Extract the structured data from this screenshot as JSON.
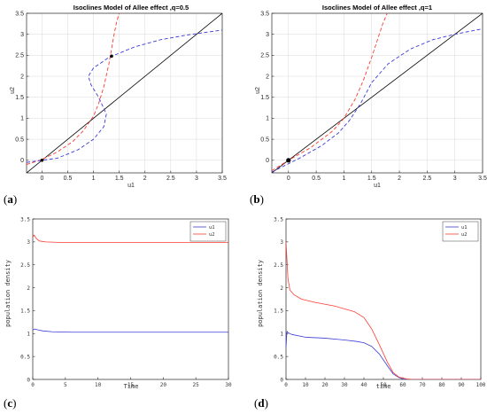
{
  "chart_data": [
    {
      "id": "a",
      "type": "line",
      "caption": "a",
      "title": "Isoclines Model of Allee effect  ,q=0.5",
      "xlabel": "u1",
      "ylabel": "u2",
      "xlim": [
        -0.3,
        3.5
      ],
      "ylim": [
        -0.3,
        3.5
      ],
      "xticks": [
        0,
        0.5,
        1,
        1.5,
        2,
        2.5,
        3,
        3.5
      ],
      "xtick_labels": [
        "0",
        "0.5",
        "1",
        "1.5",
        "2",
        "2.5",
        "3",
        "3.5"
      ],
      "yticks": [
        0,
        0.5,
        1,
        1.5,
        2,
        2.5,
        3,
        3.5
      ],
      "ytick_labels": [
        "0",
        "0.5",
        "1",
        "1.5",
        "2",
        "2.5",
        "3",
        "3.5"
      ],
      "grid": true,
      "series": [
        {
          "color": "#000000",
          "dash": "solid",
          "x": [
            -0.3,
            3.5
          ],
          "y": [
            -0.3,
            3.5
          ]
        },
        {
          "color": "#ff3b30",
          "dash": "dashed",
          "x": [
            -0.3,
            0,
            0.3,
            0.6,
            0.8,
            1.0,
            1.1,
            1.2,
            1.3,
            1.35,
            1.4,
            1.45,
            1.5
          ],
          "y": [
            -0.1,
            0.02,
            0.2,
            0.45,
            0.7,
            1.05,
            1.35,
            1.75,
            2.3,
            2.65,
            3.0,
            3.3,
            3.5
          ]
        },
        {
          "color": "#3b3bd6",
          "dash": "dashed",
          "x": [
            -0.3,
            0.3,
            0.7,
            1.0,
            1.2,
            1.25,
            1.1,
            0.95,
            0.9,
            1.0,
            1.3,
            1.8,
            2.3,
            2.8,
            3.2,
            3.5
          ],
          "y": [
            -0.05,
            0.05,
            0.25,
            0.5,
            0.8,
            1.1,
            1.5,
            1.8,
            2.0,
            2.2,
            2.45,
            2.7,
            2.87,
            2.98,
            3.05,
            3.1
          ]
        }
      ],
      "points": [
        {
          "x": 0,
          "y": 0
        },
        {
          "x": 1.35,
          "y": 2.48
        }
      ]
    },
    {
      "id": "b",
      "type": "line",
      "caption": "b",
      "title": "Isoclines Model of Allee effect  ,q=1",
      "xlabel": "u1",
      "ylabel": "u2",
      "xlim": [
        -0.3,
        3.5
      ],
      "ylim": [
        -0.3,
        3.5
      ],
      "xticks": [
        0,
        0.5,
        1,
        1.5,
        2,
        2.5,
        3,
        3.5
      ],
      "xtick_labels": [
        "0",
        "0.5",
        "1",
        "1.5",
        "2",
        "2.5",
        "3",
        "3.5"
      ],
      "yticks": [
        0,
        0.5,
        1,
        1.5,
        2,
        2.5,
        3,
        3.5
      ],
      "ytick_labels": [
        "0",
        "0.5",
        "1",
        "1.5",
        "2",
        "2.5",
        "3",
        "3.5"
      ],
      "grid": true,
      "series": [
        {
          "color": "#000000",
          "dash": "solid",
          "x": [
            -0.3,
            3.5
          ],
          "y": [
            -0.3,
            3.5
          ]
        },
        {
          "color": "#ff3b30",
          "dash": "dashed",
          "x": [
            -0.3,
            0,
            0.4,
            0.8,
            1.0,
            1.2,
            1.35,
            1.5,
            1.6,
            1.7,
            1.78
          ],
          "y": [
            -0.25,
            0,
            0.3,
            0.7,
            1.0,
            1.45,
            1.9,
            2.45,
            2.85,
            3.25,
            3.5
          ]
        },
        {
          "color": "#3b3bd6",
          "dash": "dashed",
          "x": [
            -0.3,
            0.2,
            0.6,
            0.9,
            1.1,
            1.3,
            1.5,
            1.8,
            2.2,
            2.6,
            3.0,
            3.3,
            3.5
          ],
          "y": [
            -0.28,
            0.05,
            0.35,
            0.65,
            0.95,
            1.35,
            1.85,
            2.3,
            2.65,
            2.87,
            3.0,
            3.08,
            3.13
          ]
        }
      ],
      "points": [
        {
          "x": 0,
          "y": 0
        }
      ]
    },
    {
      "id": "c",
      "type": "line",
      "caption": "c",
      "xlabel": "Time",
      "ylabel": "population density",
      "xlim": [
        0,
        30
      ],
      "ylim": [
        0,
        3.5
      ],
      "xticks": [
        0,
        5,
        10,
        15,
        20,
        25,
        30
      ],
      "xtick_labels": [
        "0",
        "5",
        "10",
        "15",
        "20",
        "25",
        "30"
      ],
      "yticks": [
        0,
        0.5,
        1,
        1.5,
        2,
        2.5,
        3,
        3.5
      ],
      "ytick_labels": [
        "0",
        "0.5",
        "1",
        "1.5",
        "2",
        "2.5",
        "3",
        "3.5"
      ],
      "grid": false,
      "legend": "top-right",
      "series": [
        {
          "name": "u1",
          "color": "#3b3bd6",
          "dash": "solid",
          "x": [
            0,
            0.3,
            0.8,
            1.5,
            3,
            6,
            10,
            15,
            20,
            25,
            30
          ],
          "y": [
            1.08,
            1.1,
            1.08,
            1.06,
            1.04,
            1.03,
            1.03,
            1.03,
            1.03,
            1.03,
            1.03
          ]
        },
        {
          "name": "u2",
          "color": "#ff3b30",
          "dash": "solid",
          "x": [
            0,
            0.2,
            0.5,
            1,
            2,
            4,
            8,
            15,
            20,
            25,
            30
          ],
          "y": [
            3.1,
            3.15,
            3.08,
            3.02,
            3.0,
            2.99,
            2.99,
            2.99,
            2.99,
            2.99,
            2.99
          ]
        }
      ]
    },
    {
      "id": "d",
      "type": "line",
      "caption": "d",
      "xlabel": "time",
      "ylabel": "population density",
      "xlim": [
        0,
        100
      ],
      "ylim": [
        0,
        3.5
      ],
      "xticks": [
        0,
        10,
        20,
        30,
        40,
        50,
        60,
        70,
        80,
        90,
        100
      ],
      "xtick_labels": [
        "0",
        "10",
        "20",
        "30",
        "40",
        "50",
        "60",
        "70",
        "80",
        "90",
        "100"
      ],
      "yticks": [
        0,
        0.5,
        1,
        1.5,
        2,
        2.5,
        3,
        3.5
      ],
      "ytick_labels": [
        "0",
        "0.5",
        "1",
        "1.5",
        "2",
        "2.5",
        "3",
        "3.5"
      ],
      "grid": false,
      "legend": "top-right",
      "series": [
        {
          "name": "u1",
          "color": "#3b3bd6",
          "dash": "solid",
          "x": [
            0,
            0.5,
            1,
            3,
            10,
            20,
            30,
            36,
            40,
            44,
            48,
            52,
            55,
            58,
            60,
            65,
            100
          ],
          "y": [
            0.7,
            1.05,
            1.02,
            0.98,
            0.92,
            0.9,
            0.86,
            0.83,
            0.8,
            0.72,
            0.55,
            0.3,
            0.12,
            0.04,
            0.01,
            0.0,
            0.0
          ]
        },
        {
          "name": "u2",
          "color": "#ff3b30",
          "dash": "solid",
          "x": [
            0,
            0.5,
            1,
            2,
            4,
            8,
            15,
            25,
            35,
            40,
            44,
            48,
            52,
            55,
            58,
            62,
            65,
            100
          ],
          "y": [
            3.0,
            2.6,
            2.2,
            1.95,
            1.85,
            1.75,
            1.68,
            1.6,
            1.48,
            1.35,
            1.1,
            0.75,
            0.38,
            0.15,
            0.05,
            0.01,
            0.0,
            0.0
          ]
        }
      ]
    }
  ]
}
